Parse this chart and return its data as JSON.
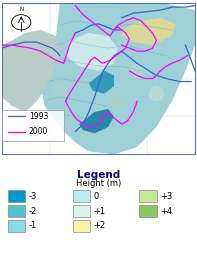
{
  "title": "Legend",
  "subtitle": "Height (m)",
  "line_labels": [
    "1993",
    "2000"
  ],
  "line_colors": [
    "#3366cc",
    "#ff00ff"
  ],
  "legend_items": [
    {
      "label": "-3",
      "color": "#0099cc"
    },
    {
      "label": "-2",
      "color": "#55c0d0"
    },
    {
      "label": "-1",
      "color": "#88d8e8"
    },
    {
      "label": "0",
      "color": "#b8ece8"
    },
    {
      "label": "+1",
      "color": "#d8f4e8"
    },
    {
      "label": "+2",
      "color": "#f5f5aa"
    },
    {
      "label": "+3",
      "color": "#c8e890"
    },
    {
      "label": "+4",
      "color": "#88c860"
    }
  ],
  "map_bg": "#9ed0d8",
  "map_light": "#b8dce0",
  "map_lighter": "#cce8e8",
  "fig_bg": "#ffffff",
  "title_color": "#00008b",
  "title_fontsize": 7.5,
  "subtitle_fontsize": 6,
  "legend_label_fontsize": 6,
  "north_circle_color": "#cccccc",
  "grid_color": "#cccccc",
  "border_color": "#5577aa"
}
